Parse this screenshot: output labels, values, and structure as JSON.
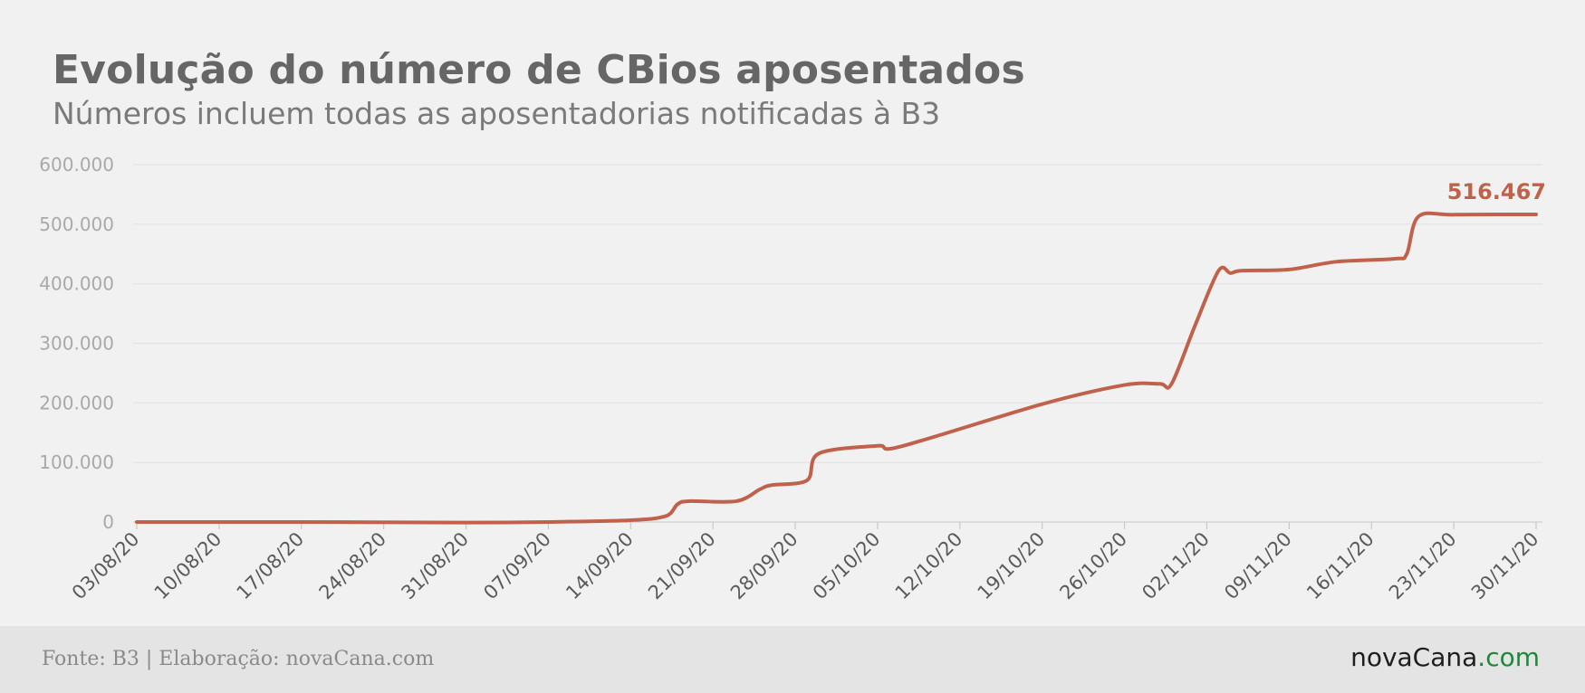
{
  "title": "Evolução do número de CBios aposentados",
  "subtitle": "Números incluem todas as aposentadorias notificadas à B3",
  "footer": {
    "source": "Fonte: B3 | Elaboração: novaCana.com",
    "logo_main": "novaCana",
    "logo_tld": ".com"
  },
  "colors": {
    "line": "#c0624b",
    "logo_accent": "#1a8a3a"
  },
  "chart_data": {
    "type": "line",
    "title": "Evolução do número de CBios aposentados",
    "subtitle": "Números incluem todas as aposentadorias notificadas à B3",
    "ylim": [
      0,
      600000
    ],
    "y_ticks": [
      0,
      100000,
      200000,
      300000,
      400000,
      500000,
      600000
    ],
    "y_tick_labels": [
      "0",
      "100.000",
      "200.000",
      "300.000",
      "400.000",
      "500.000",
      "600.000"
    ],
    "x_tick_labels": [
      "03/08/20",
      "10/08/20",
      "17/08/20",
      "24/08/20",
      "31/08/20",
      "07/09/20",
      "14/09/20",
      "21/09/20",
      "28/09/20",
      "05/10/20",
      "12/10/20",
      "19/10/20",
      "26/10/20",
      "02/11/20",
      "09/11/20",
      "16/11/20",
      "23/11/20",
      "30/11/20"
    ],
    "grid": "horizontal",
    "end_label": "516.467",
    "series": [
      {
        "x": [
          "03/08/20",
          "17/08/20",
          "31/08/20",
          "07/09/20",
          "14/09/20",
          "17/09/20",
          "18/09/20",
          "19/09/20",
          "23/09/20",
          "25/09/20",
          "26/09/20",
          "29/09/20",
          "30/09/20",
          "05/10/20",
          "07/10/20",
          "19/10/20",
          "26/10/20",
          "29/10/20",
          "30/10/20",
          "01/11/20",
          "03/11/20",
          "04/11/20",
          "05/11/20",
          "09/11/20",
          "13/11/20",
          "18/11/20",
          "19/11/20",
          "20/11/20",
          "23/11/20",
          "30/11/20"
        ],
        "values": [
          0,
          0,
          -1000,
          0,
          3000,
          10000,
          30000,
          35000,
          35000,
          55000,
          62000,
          70000,
          115000,
          128000,
          127000,
          198000,
          230000,
          232000,
          232000,
          330000,
          422000,
          418000,
          422000,
          424000,
          437000,
          442000,
          450000,
          513000,
          516000,
          516467
        ]
      }
    ]
  }
}
